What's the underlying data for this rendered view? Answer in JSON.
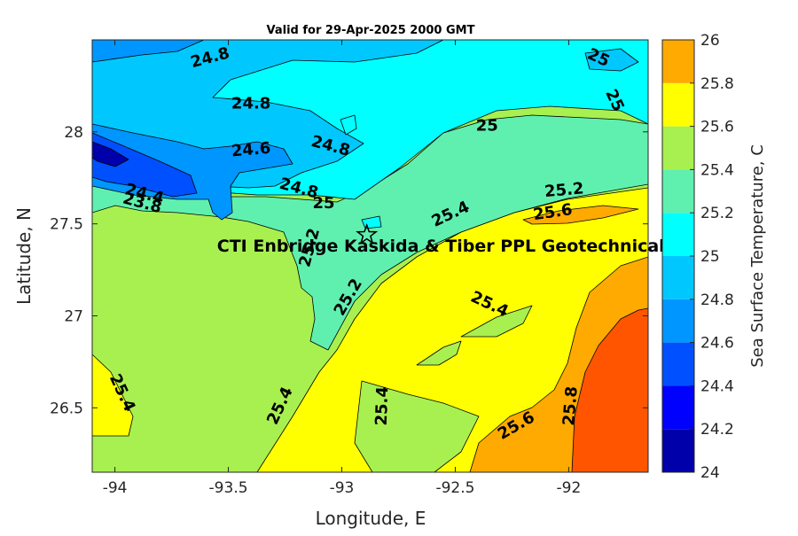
{
  "chart_data": {
    "type": "contour",
    "title": "Valid for 29-Apr-2025 2000 GMT",
    "xlabel": "Longitude, E",
    "ylabel": "Latitude, N",
    "xlim": [
      -94.1,
      -91.65
    ],
    "ylim": [
      26.15,
      28.5
    ],
    "x_ticks": [
      -94,
      -93.5,
      -93,
      -92.5,
      -92
    ],
    "x_tick_labels": [
      "-94",
      "-93.5",
      "-93",
      "-92.5",
      "-92"
    ],
    "y_ticks": [
      26.5,
      27,
      27.5,
      28
    ],
    "y_tick_labels": [
      "26.5",
      "27",
      "27.5",
      "28"
    ],
    "colorbar": {
      "label": "Sea Surface Temperature, C",
      "levels": [
        24,
        24.2,
        24.4,
        24.6,
        24.8,
        25,
        25.2,
        25.4,
        25.6,
        25.8,
        26
      ],
      "tick_labels": [
        "24",
        "24.2",
        "24.4",
        "24.6",
        "24.8",
        "25",
        "25.2",
        "25.4",
        "25.6",
        "25.8",
        "26"
      ],
      "colors": [
        "#0000aa",
        "#0000ff",
        "#0050ff",
        "#0096ff",
        "#00c8ff",
        "#00ffff",
        "#5ff0b0",
        "#a8f050",
        "#ffff00",
        "#ffaa00",
        "#ff5500"
      ]
    },
    "contour_labels": [
      {
        "text": "24.8",
        "lon": -93.58,
        "lat": 28.4,
        "angle": -15
      },
      {
        "text": "24.8",
        "lon": -93.4,
        "lat": 28.15,
        "angle": 0
      },
      {
        "text": "24.6",
        "lon": -93.4,
        "lat": 27.9,
        "angle": -5
      },
      {
        "text": "24.8",
        "lon": -93.05,
        "lat": 27.92,
        "angle": 15
      },
      {
        "text": "24.8",
        "lon": -93.19,
        "lat": 27.69,
        "angle": 15
      },
      {
        "text": "24.4",
        "lon": -93.87,
        "lat": 27.66,
        "angle": 15
      },
      {
        "text": "23.8",
        "lon": -93.88,
        "lat": 27.61,
        "angle": 15
      },
      {
        "text": "25",
        "lon": -93.08,
        "lat": 27.61,
        "angle": 0
      },
      {
        "text": "25",
        "lon": -92.36,
        "lat": 28.03,
        "angle": 0
      },
      {
        "text": "25",
        "lon": -91.87,
        "lat": 28.4,
        "angle": 25
      },
      {
        "text": "25",
        "lon": -91.8,
        "lat": 28.17,
        "angle": 65
      },
      {
        "text": "25.2",
        "lon": -92.02,
        "lat": 27.68,
        "angle": -5
      },
      {
        "text": "25.6",
        "lon": -92.07,
        "lat": 27.56,
        "angle": -8
      },
      {
        "text": "25.4",
        "lon": -92.52,
        "lat": 27.55,
        "angle": -25
      },
      {
        "text": "25.2",
        "lon": -93.14,
        "lat": 27.37,
        "angle": -75
      },
      {
        "text": "25.2",
        "lon": -92.97,
        "lat": 27.1,
        "angle": -60
      },
      {
        "text": "25.4",
        "lon": -92.35,
        "lat": 27.06,
        "angle": 25
      },
      {
        "text": "25.4",
        "lon": -93.97,
        "lat": 26.58,
        "angle": 65
      },
      {
        "text": "25.4",
        "lon": -93.27,
        "lat": 26.51,
        "angle": -65
      },
      {
        "text": "25.4",
        "lon": -92.82,
        "lat": 26.51,
        "angle": -88
      },
      {
        "text": "25.6",
        "lon": -92.23,
        "lat": 26.4,
        "angle": -30
      },
      {
        "text": "25.8",
        "lon": -91.99,
        "lat": 26.51,
        "angle": -85
      }
    ],
    "annotation": {
      "text": "CTI Enbridge  Kaskida & Tiber PPL Geotechnical",
      "lon": -93.55,
      "lat": 27.35
    },
    "marker": {
      "type": "star",
      "lon": -92.89,
      "lat": 27.44
    }
  }
}
